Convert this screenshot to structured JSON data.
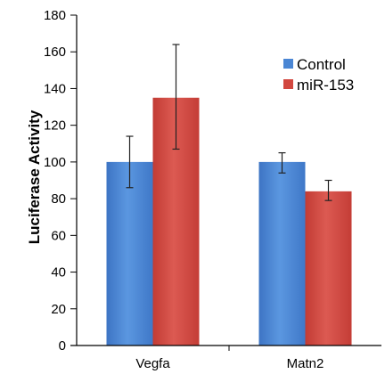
{
  "chart_data": {
    "type": "bar",
    "title": "",
    "xlabel": "",
    "ylabel": "Luciferase Activity",
    "ylim": [
      0,
      180
    ],
    "yticks": [
      0,
      20,
      40,
      60,
      80,
      100,
      120,
      140,
      160,
      180
    ],
    "categories": [
      "Vegfa",
      "Matn2"
    ],
    "series": [
      {
        "name": "Control",
        "color": "#4a86d4",
        "values": [
          100,
          100
        ],
        "error_low": [
          86,
          94
        ],
        "error_high": [
          114,
          105
        ]
      },
      {
        "name": "miR-153",
        "color": "#d2473f",
        "values": [
          135,
          84
        ],
        "error_low": [
          107,
          79
        ],
        "error_high": [
          164,
          90
        ]
      }
    ],
    "grid": false,
    "legend": "top-right",
    "error_bars": true
  }
}
